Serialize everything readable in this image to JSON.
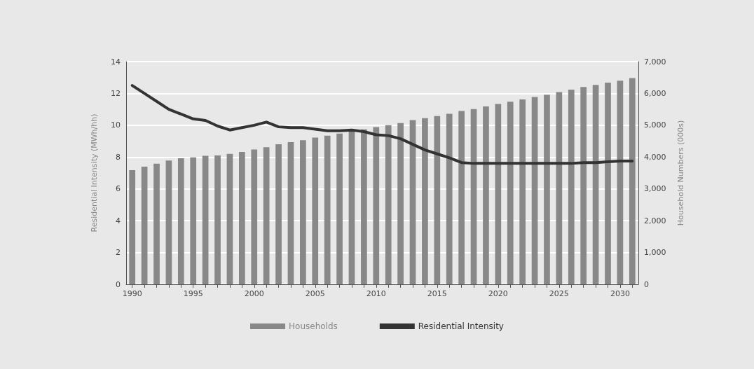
{
  "chart_data": {
    "type": "bar",
    "xlabel": null,
    "ylabel": "Residential Intensity (MWh/hh)",
    "y2label": "Household Numbers (000s)",
    "categories": [
      "1990",
      null,
      null,
      null,
      null,
      "1995",
      null,
      null,
      null,
      null,
      "2000",
      null,
      null,
      null,
      null,
      "2005",
      null,
      null,
      null,
      null,
      "2010",
      null,
      null,
      null,
      null,
      "2015",
      null,
      null,
      null,
      null,
      "2020",
      null,
      null,
      null,
      null,
      "2025",
      null,
      null,
      null,
      null,
      "2030",
      null
    ],
    "series": [
      {
        "name": "Households",
        "axis": "y2",
        "color": "#888888",
        "values": [
          3590,
          3700,
          3790,
          3890,
          3960,
          3990,
          4040,
          4050,
          4100,
          4160,
          4240,
          4310,
          4400,
          4470,
          4530,
          4610,
          4670,
          4740,
          4810,
          4870,
          4940,
          5000,
          5070,
          5160,
          5220,
          5290,
          5360,
          5450,
          5510,
          5590,
          5670,
          5740,
          5810,
          5890,
          5960,
          6040,
          6120,
          6200,
          6270,
          6340,
          6400,
          6480
        ]
      },
      {
        "name": "Residential Intensity",
        "type": "line",
        "axis": "y",
        "color": "#333333",
        "marker": "none",
        "line_style": "solid",
        "values": [
          12.5,
          12.0,
          11.5,
          11.0,
          10.7,
          10.4,
          10.3,
          9.95,
          9.7,
          9.85,
          10.0,
          10.2,
          9.9,
          9.85,
          9.85,
          9.75,
          9.65,
          9.65,
          9.7,
          9.6,
          9.4,
          9.35,
          9.15,
          8.8,
          8.45,
          8.2,
          7.95,
          7.65,
          7.6,
          7.6,
          7.6,
          7.6,
          7.6,
          7.6,
          7.6,
          7.6,
          7.6,
          7.65,
          7.65,
          7.7,
          7.75,
          7.75
        ]
      }
    ],
    "ylim": [
      0,
      14
    ],
    "yticks": [
      0,
      2,
      4,
      6,
      8,
      10,
      12,
      14
    ],
    "y2lim": [
      0,
      7000
    ],
    "y2ticks": [
      {
        "value": 0,
        "label": "0"
      },
      {
        "value": 1000,
        "label": "1,000"
      },
      {
        "value": 2000,
        "label": "2,000"
      },
      {
        "value": 3000,
        "label": "3,000"
      },
      {
        "value": 4000,
        "label": "4,000"
      },
      {
        "value": 5000,
        "label": "5,000"
      },
      {
        "value": 6000,
        "label": "6,000"
      },
      {
        "value": 7000,
        "label": "7,000"
      }
    ],
    "grid": "y",
    "legend": "bottom"
  }
}
